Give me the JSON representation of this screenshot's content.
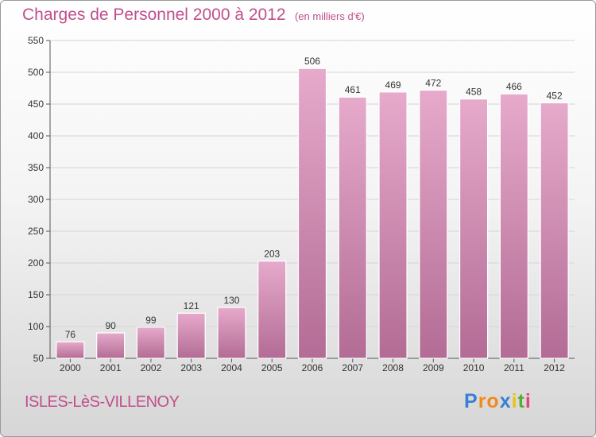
{
  "header": {
    "title": "Charges de Personnel 2000 à 2012",
    "subtitle": "(en milliers d'€)"
  },
  "footer": {
    "commune": "ISLES-LèS-VILLENOY",
    "logo_text": "Proxiti",
    "logo_colors": [
      "#3a7fd5",
      "#f28a1b",
      "#f28a1b",
      "#3a7fd5",
      "#e8c21b",
      "#5aab2e",
      "#e0457b"
    ]
  },
  "colors": {
    "text_accent": "#c04f8c",
    "bar_light": "#e6aacb",
    "bar_dark": "#b36c95",
    "grid": "#d4d4d4"
  },
  "chart_data": {
    "type": "bar",
    "title": "Charges de Personnel 2000 à 2012",
    "subtitle": "(en milliers d'€)",
    "categories": [
      "2000",
      "2001",
      "2002",
      "2003",
      "2004",
      "2005",
      "2006",
      "2007",
      "2008",
      "2009",
      "2010",
      "2011",
      "2012"
    ],
    "values": [
      76,
      90,
      99,
      121,
      130,
      203,
      506,
      461,
      469,
      472,
      458,
      466,
      452
    ],
    "ylim": [
      50,
      550
    ],
    "yticks": [
      50,
      100,
      150,
      200,
      250,
      300,
      350,
      400,
      450,
      500,
      550
    ],
    "grid": true,
    "legend": "none"
  }
}
